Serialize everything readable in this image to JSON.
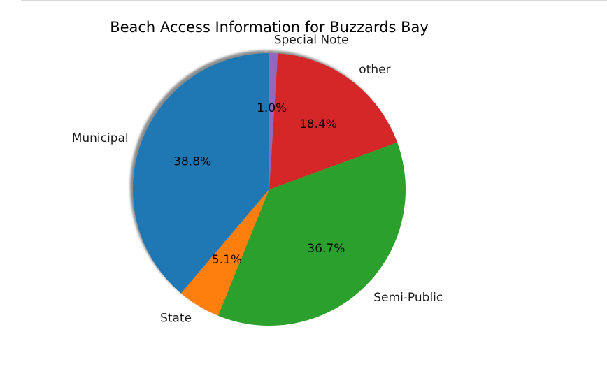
{
  "chart_data": {
    "type": "pie",
    "title": "Beach Access Information for Buzzards Bay",
    "startangle_deg": 90,
    "direction": "counterclockwise",
    "shadow": true,
    "slices": [
      {
        "label": "Municipal",
        "value": 38.8,
        "pct_text": "38.8%",
        "color": "#1f77b4"
      },
      {
        "label": "State",
        "value": 5.1,
        "pct_text": "5.1%",
        "color": "#ff7f0e"
      },
      {
        "label": "Semi-Public",
        "value": 36.7,
        "pct_text": "36.7%",
        "color": "#2ca02c"
      },
      {
        "label": "other",
        "value": 18.4,
        "pct_text": "18.4%",
        "color": "#d62728"
      },
      {
        "label": "Special Note",
        "value": 1.0,
        "pct_text": "1.0%",
        "color": "#9467bd"
      }
    ]
  }
}
